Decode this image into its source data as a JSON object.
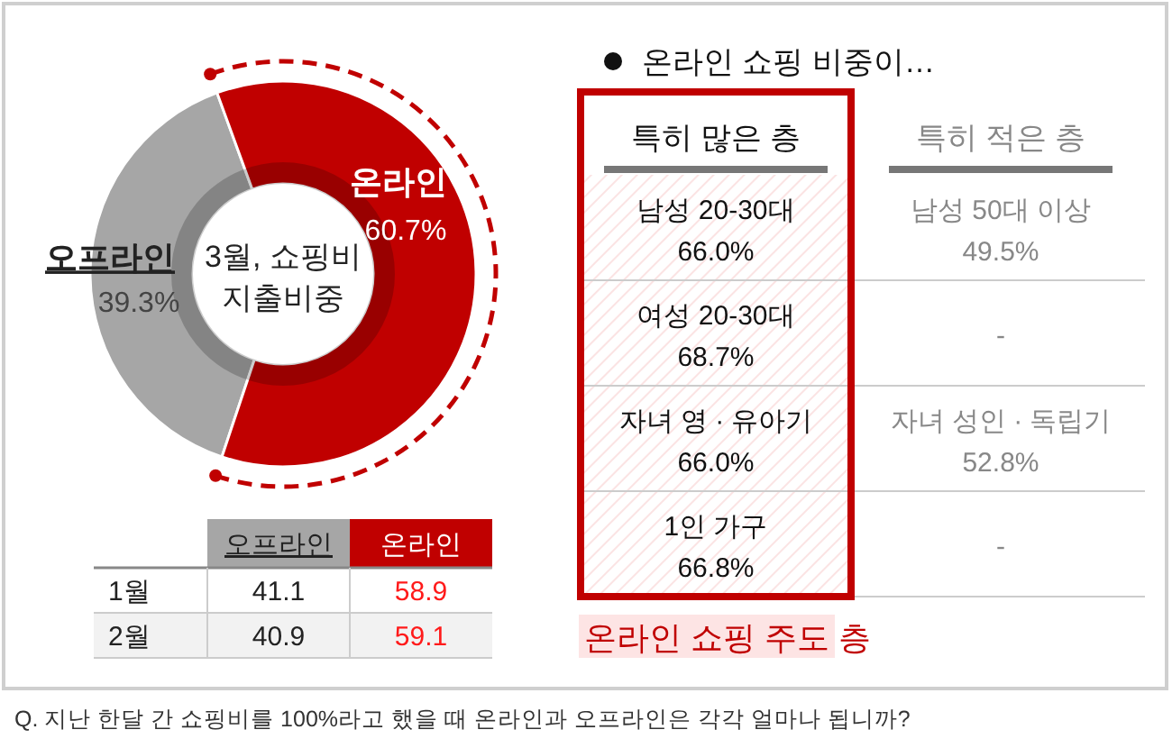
{
  "chart_data": [
    {
      "type": "donut",
      "title": "3월, 쇼핑비 지출비중",
      "categories": [
        "오프라인",
        "온라인"
      ],
      "values": [
        39.3,
        60.7
      ],
      "colors": [
        "#a6a6a6",
        "#c00000"
      ],
      "value_labels": [
        "39.3%",
        "60.7%"
      ],
      "annotations": [
        "Q. 지난 한달 간 쇼핑비를 100%라고 했을 때 온라인과 오프라인은 각각 얼마나 됩니까?"
      ]
    },
    {
      "type": "other",
      "categories": [
        "1월",
        "2월"
      ],
      "colors": [
        "#a6a6a6",
        "#c00000"
      ],
      "series": [
        {
          "name": "오프라인",
          "values": [
            41.1,
            40.9
          ]
        },
        {
          "name": "온라인",
          "values": [
            58.9,
            59.1
          ]
        }
      ],
      "data_labels": true
    },
    {
      "type": "other",
      "title": "온라인 쇼핑 비중이…",
      "categories": [
        "특히 많은 층",
        "특히 적은 층"
      ],
      "cell_labels": [
        [
          "남성 20-30대\n66.0%",
          "남성 50대 이상\n49.5%"
        ],
        [
          "여성 20-30대\n68.7%",
          "-"
        ],
        [
          "자녀 영 · 유아기\n66.0%",
          "자녀 성인 · 독립기\n52.8%"
        ],
        [
          "1인 가구\n66.8%",
          "-"
        ]
      ],
      "annotations": [
        "온라인 쇼핑 주도 층"
      ]
    }
  ]
}
